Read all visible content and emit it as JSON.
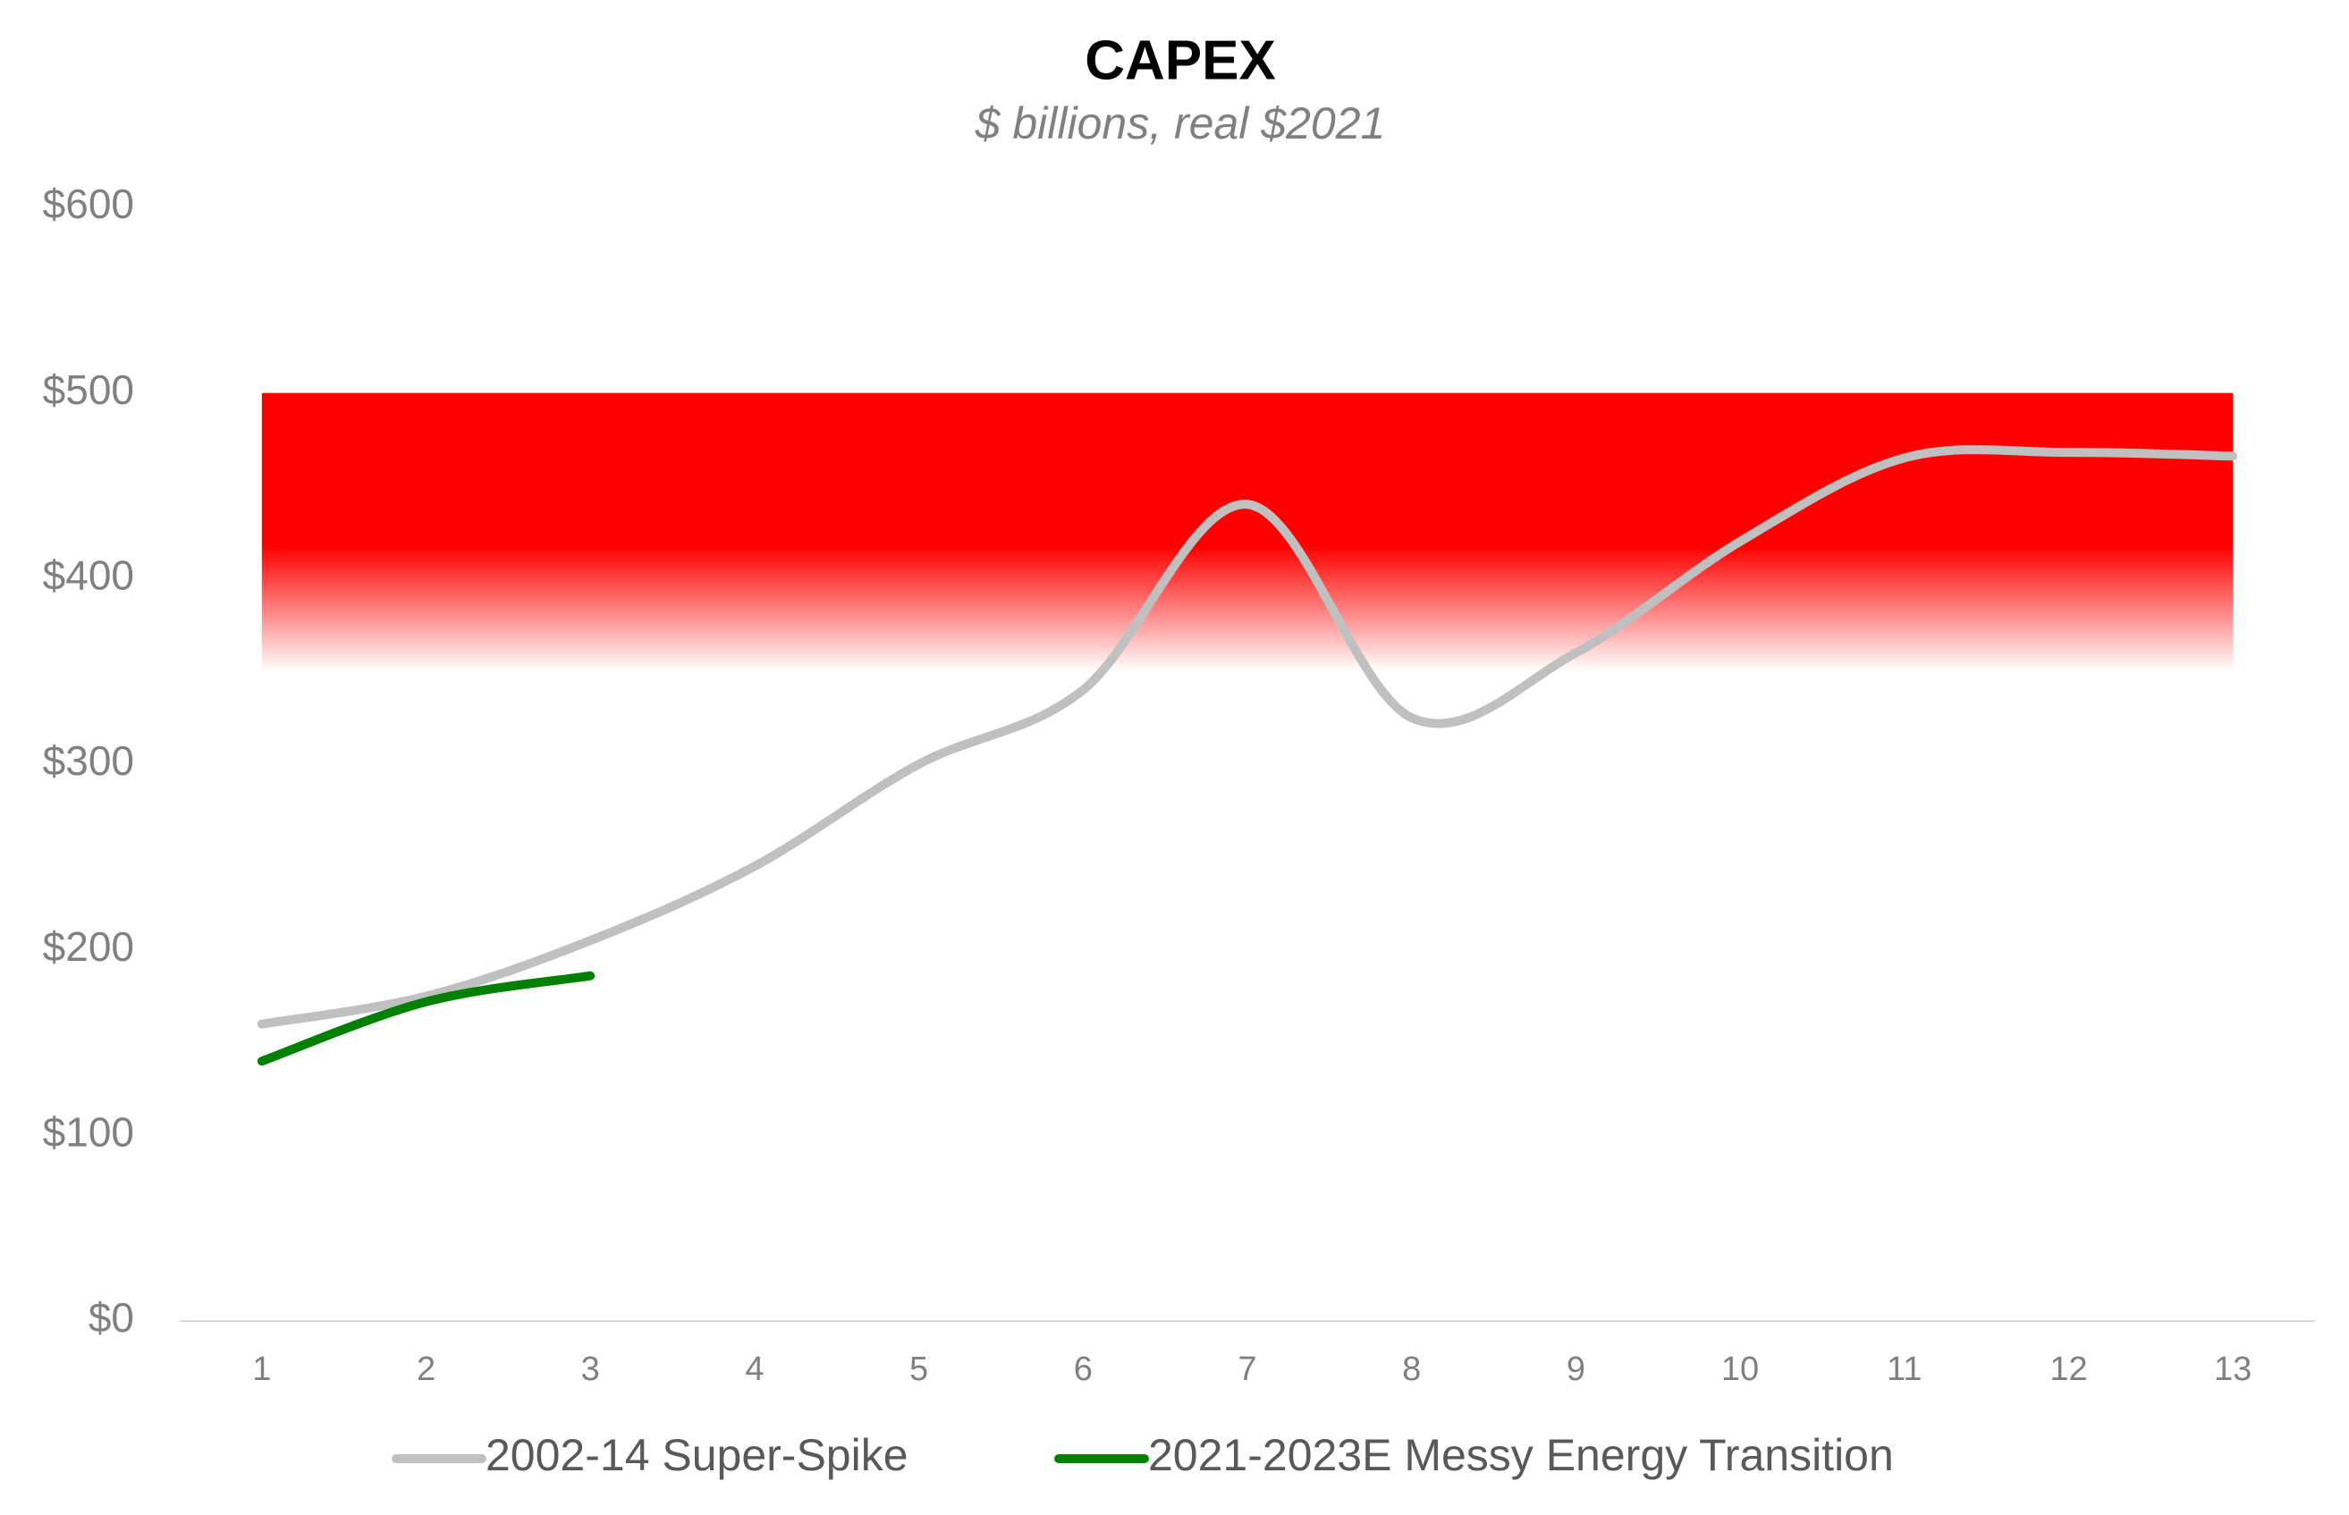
{
  "chart_data": {
    "type": "line",
    "title": "CAPEX",
    "subtitle": "$ billions, real $2021",
    "x": [
      1,
      2,
      3,
      4,
      5,
      6,
      7,
      8,
      9,
      10,
      11,
      12,
      13
    ],
    "series": [
      {
        "name": "2002-14 Super-Spike",
        "color": "#c0c0c0",
        "values": [
          160,
          175,
          205,
          245,
          300,
          340,
          440,
          325,
          360,
          420,
          465,
          468,
          466
        ]
      },
      {
        "name": "2021-2023E Messy Energy Transition",
        "color": "#008000",
        "values": [
          140,
          172,
          186,
          null,
          null,
          null,
          null,
          null,
          null,
          null,
          null,
          null,
          null
        ]
      }
    ],
    "shaded_range": [
      350,
      500
    ],
    "shaded_color": "#ff0000",
    "xlim": [
      0.5,
      13.5
    ],
    "xticks": [
      1,
      2,
      3,
      4,
      5,
      6,
      7,
      8,
      9,
      10,
      11,
      12,
      13
    ],
    "ylim": [
      0,
      600
    ],
    "yticks": [
      {
        "value": 0,
        "label": "$0"
      },
      {
        "value": 100,
        "label": "$100"
      },
      {
        "value": 200,
        "label": "$200"
      },
      {
        "value": 300,
        "label": "$300"
      },
      {
        "value": 400,
        "label": "$400"
      },
      {
        "value": 500,
        "label": "$500"
      },
      {
        "value": 600,
        "label": "$600"
      }
    ],
    "grid": false,
    "legend": "bottom"
  }
}
